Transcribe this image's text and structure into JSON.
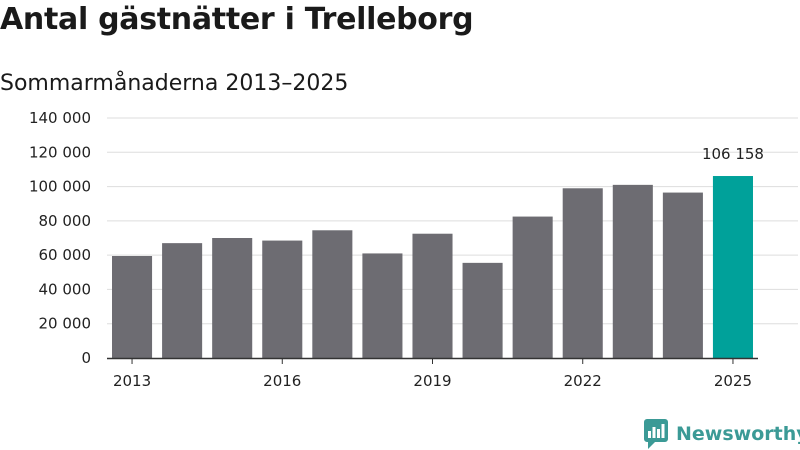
{
  "chart_data": {
    "type": "bar",
    "title": "Antal gästnätter i Trelleborg",
    "subtitle": "Sommarmånaderna 2013–2025",
    "xlabel": "",
    "ylabel": "",
    "categories": [
      "2013",
      "2014",
      "2015",
      "2016",
      "2017",
      "2018",
      "2019",
      "2020",
      "2021",
      "2022",
      "2023",
      "2024",
      "2025"
    ],
    "x_tick_labels": [
      "2013",
      "2016",
      "2019",
      "2022",
      "2025"
    ],
    "values": [
      59500,
      67000,
      70000,
      68500,
      74500,
      61000,
      72500,
      55500,
      82500,
      99000,
      101000,
      96500,
      106158
    ],
    "ylim": [
      0,
      140000
    ],
    "y_ticks": [
      0,
      20000,
      40000,
      60000,
      80000,
      100000,
      120000,
      140000
    ],
    "y_tick_labels": [
      "0",
      "20 000",
      "40 000",
      "60 000",
      "80 000",
      "100 000",
      "120 000",
      "140 000"
    ],
    "grid": true,
    "legend": "none",
    "annotations": [
      {
        "category": "2025",
        "text": "106 158"
      }
    ],
    "colors": {
      "bar": "#6d6c72",
      "highlight": "#00a19a",
      "grid": "#dddddd",
      "axis": "#333333"
    },
    "highlight_category": "2025"
  },
  "brand": {
    "name": "Newsworthy",
    "color": "#3b9a96",
    "icon": "newsworthy-logo-icon"
  }
}
